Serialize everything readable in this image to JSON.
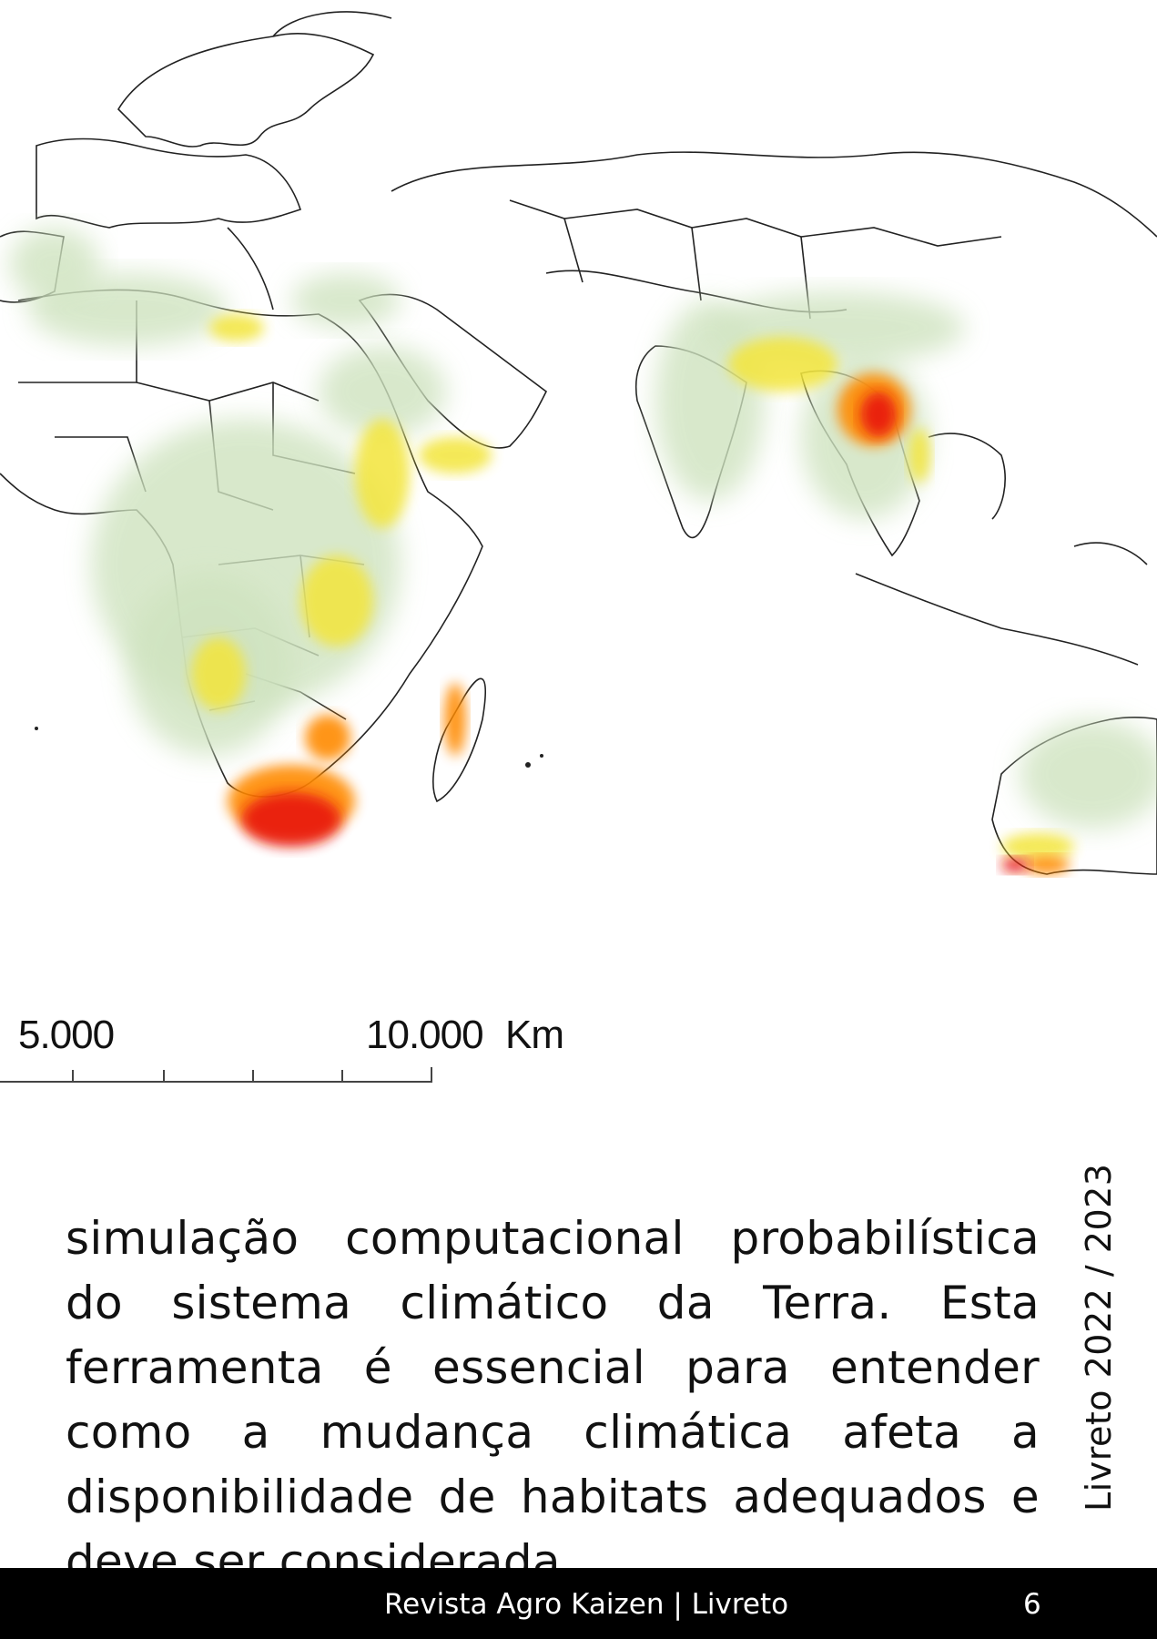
{
  "map": {
    "scale_labels": [
      "5.000",
      "10.000",
      "Km"
    ],
    "palette": {
      "low": "#cfe3bf",
      "mid": "#f3e53a",
      "high": "#ff8a00",
      "max": "#e8190a",
      "border": "#222222"
    }
  },
  "body_text": "simulação computacional probabilística do sistema climático da Terra. Esta ferramenta é essencial para entender como a mudança climática afeta a disponibilidade de habitats adequados e deve ser considerada.",
  "side_label": "Livreto 2022 / 2023",
  "footer": {
    "title": "Revista Agro Kaizen | Livreto",
    "page_number": "6"
  }
}
